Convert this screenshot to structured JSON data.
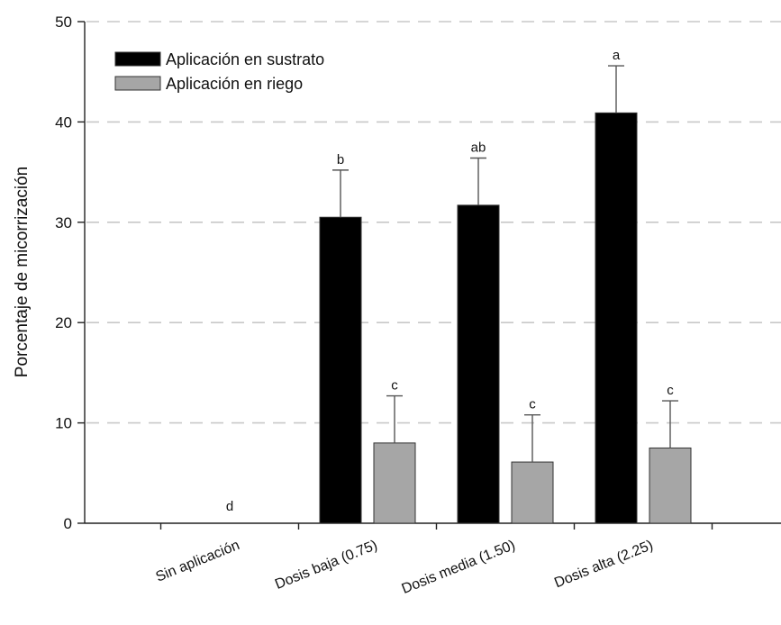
{
  "chart_data": {
    "type": "bar",
    "title": "",
    "xlabel": "",
    "ylabel": "Porcentaje de micorrización",
    "ylim": [
      0,
      50
    ],
    "yticks": [
      0,
      10,
      20,
      30,
      40,
      50
    ],
    "grid": true,
    "legend_position": "top-left",
    "categories": [
      "Sin aplicación",
      "Dosis baja (0.75)",
      "Dosis media (1.50)",
      "Dosis alta (2.25)"
    ],
    "series": [
      {
        "name": "Aplicación en sustrato",
        "color": "#000000",
        "values": [
          0,
          30.5,
          31.7,
          40.9
        ],
        "errors": [
          0,
          4.7,
          4.7,
          4.7
        ],
        "labels": [
          "",
          "b",
          "ab",
          "a"
        ]
      },
      {
        "name": "Aplicación en riego",
        "color": "#a6a6a6",
        "values": [
          0,
          8.0,
          6.1,
          7.5
        ],
        "errors": [
          0,
          4.7,
          4.7,
          4.7
        ],
        "labels": [
          "d",
          "c",
          "c",
          "c"
        ]
      }
    ]
  }
}
